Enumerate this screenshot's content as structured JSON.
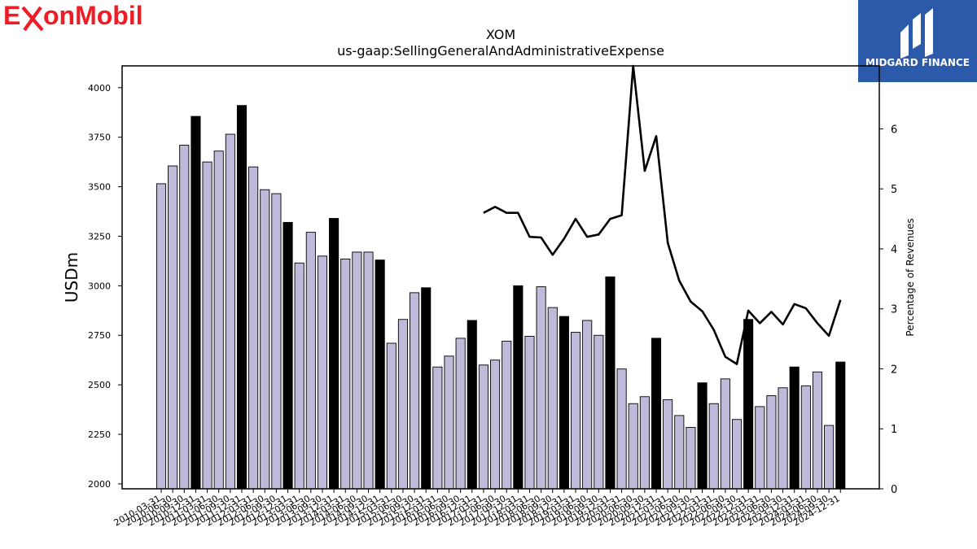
{
  "brand": {
    "left_logo_text_parts": [
      "E",
      "onMobil"
    ],
    "right_logo_text": "MIDGARD FINANCE",
    "colors": {
      "exxon_red": "#ee1c25",
      "midgard_blue": "#2b5aaa"
    }
  },
  "chart_data": {
    "type": "bar",
    "title": "XOM",
    "subtitle": "us-gaap:SellingGeneralAndAdministrativeExpense",
    "ylabel": "USDm",
    "y2label": "Percentage of Revenues",
    "ylim": [
      1975,
      4110
    ],
    "y2lim": [
      0,
      7.05
    ],
    "yticks": [
      2000,
      2250,
      2500,
      2750,
      3000,
      3250,
      3500,
      3750,
      4000
    ],
    "y2ticks": [
      0,
      1,
      2,
      3,
      4,
      5,
      6
    ],
    "categories": [
      "2010-03-31",
      "2010-06-30",
      "2010-09-30",
      "2010-12-31",
      "2011-03-31",
      "2011-06-30",
      "2011-09-30",
      "2011-12-31",
      "2012-03-31",
      "2012-06-30",
      "2012-09-30",
      "2012-12-31",
      "2013-03-31",
      "2013-06-30",
      "2013-09-30",
      "2013-12-31",
      "2014-03-31",
      "2014-06-30",
      "2014-09-30",
      "2014-12-31",
      "2015-03-31",
      "2015-06-30",
      "2015-09-30",
      "2015-12-31",
      "2016-03-31",
      "2016-06-30",
      "2016-09-30",
      "2016-12-31",
      "2017-03-31",
      "2017-06-30",
      "2017-09-30",
      "2017-12-31",
      "2018-03-31",
      "2018-06-30",
      "2018-09-30",
      "2018-12-31",
      "2019-03-31",
      "2019-06-30",
      "2019-09-30",
      "2019-12-31",
      "2020-03-31",
      "2020-06-30",
      "2020-09-30",
      "2020-12-31",
      "2021-03-31",
      "2021-06-30",
      "2021-09-30",
      "2021-12-31",
      "2022-03-31",
      "2022-06-30",
      "2022-09-30",
      "2022-12-31",
      "2023-03-31",
      "2023-06-30",
      "2023-09-30",
      "2023-12-31",
      "2024-03-31",
      "2024-06-30",
      "2024-09-30",
      "2024-12-31"
    ],
    "series": [
      {
        "values": [
          3515,
          3605,
          3710,
          3855,
          3625,
          3680,
          3765,
          3910,
          3600,
          3485,
          3465,
          3320,
          3115,
          3270,
          3150,
          3340,
          3135,
          3170,
          3170,
          3130,
          2710,
          2830,
          2965,
          2990,
          2590,
          2645,
          2735,
          2825,
          2600,
          2625,
          2720,
          3000,
          2745,
          2995,
          2890,
          2845,
          2765,
          2825,
          2750,
          3045,
          2580,
          2405,
          2440,
          2735,
          2425,
          2345,
          2285,
          2510,
          2405,
          2530,
          2325,
          2830,
          2390,
          2445,
          2485,
          2590,
          2495,
          2565,
          2295,
          2615
        ],
        "highlight_color": "#000000",
        "bar_color": "#bfbad9"
      },
      {
        "values": [
          null,
          null,
          null,
          null,
          null,
          null,
          null,
          null,
          null,
          null,
          null,
          null,
          null,
          null,
          null,
          null,
          null,
          null,
          null,
          null,
          null,
          null,
          null,
          null,
          null,
          null,
          null,
          null,
          4.6,
          4.7,
          4.6,
          4.6,
          4.2,
          4.19,
          3.9,
          4.17,
          4.5,
          4.2,
          4.24,
          4.5,
          4.56,
          7.1,
          5.3,
          5.88,
          4.1,
          3.47,
          3.12,
          2.96,
          2.65,
          2.2,
          2.08,
          2.97,
          2.76,
          2.95,
          2.74,
          3.08,
          3.01,
          2.76,
          2.55,
          3.15
        ],
        "line_color": "#000000"
      }
    ]
  }
}
